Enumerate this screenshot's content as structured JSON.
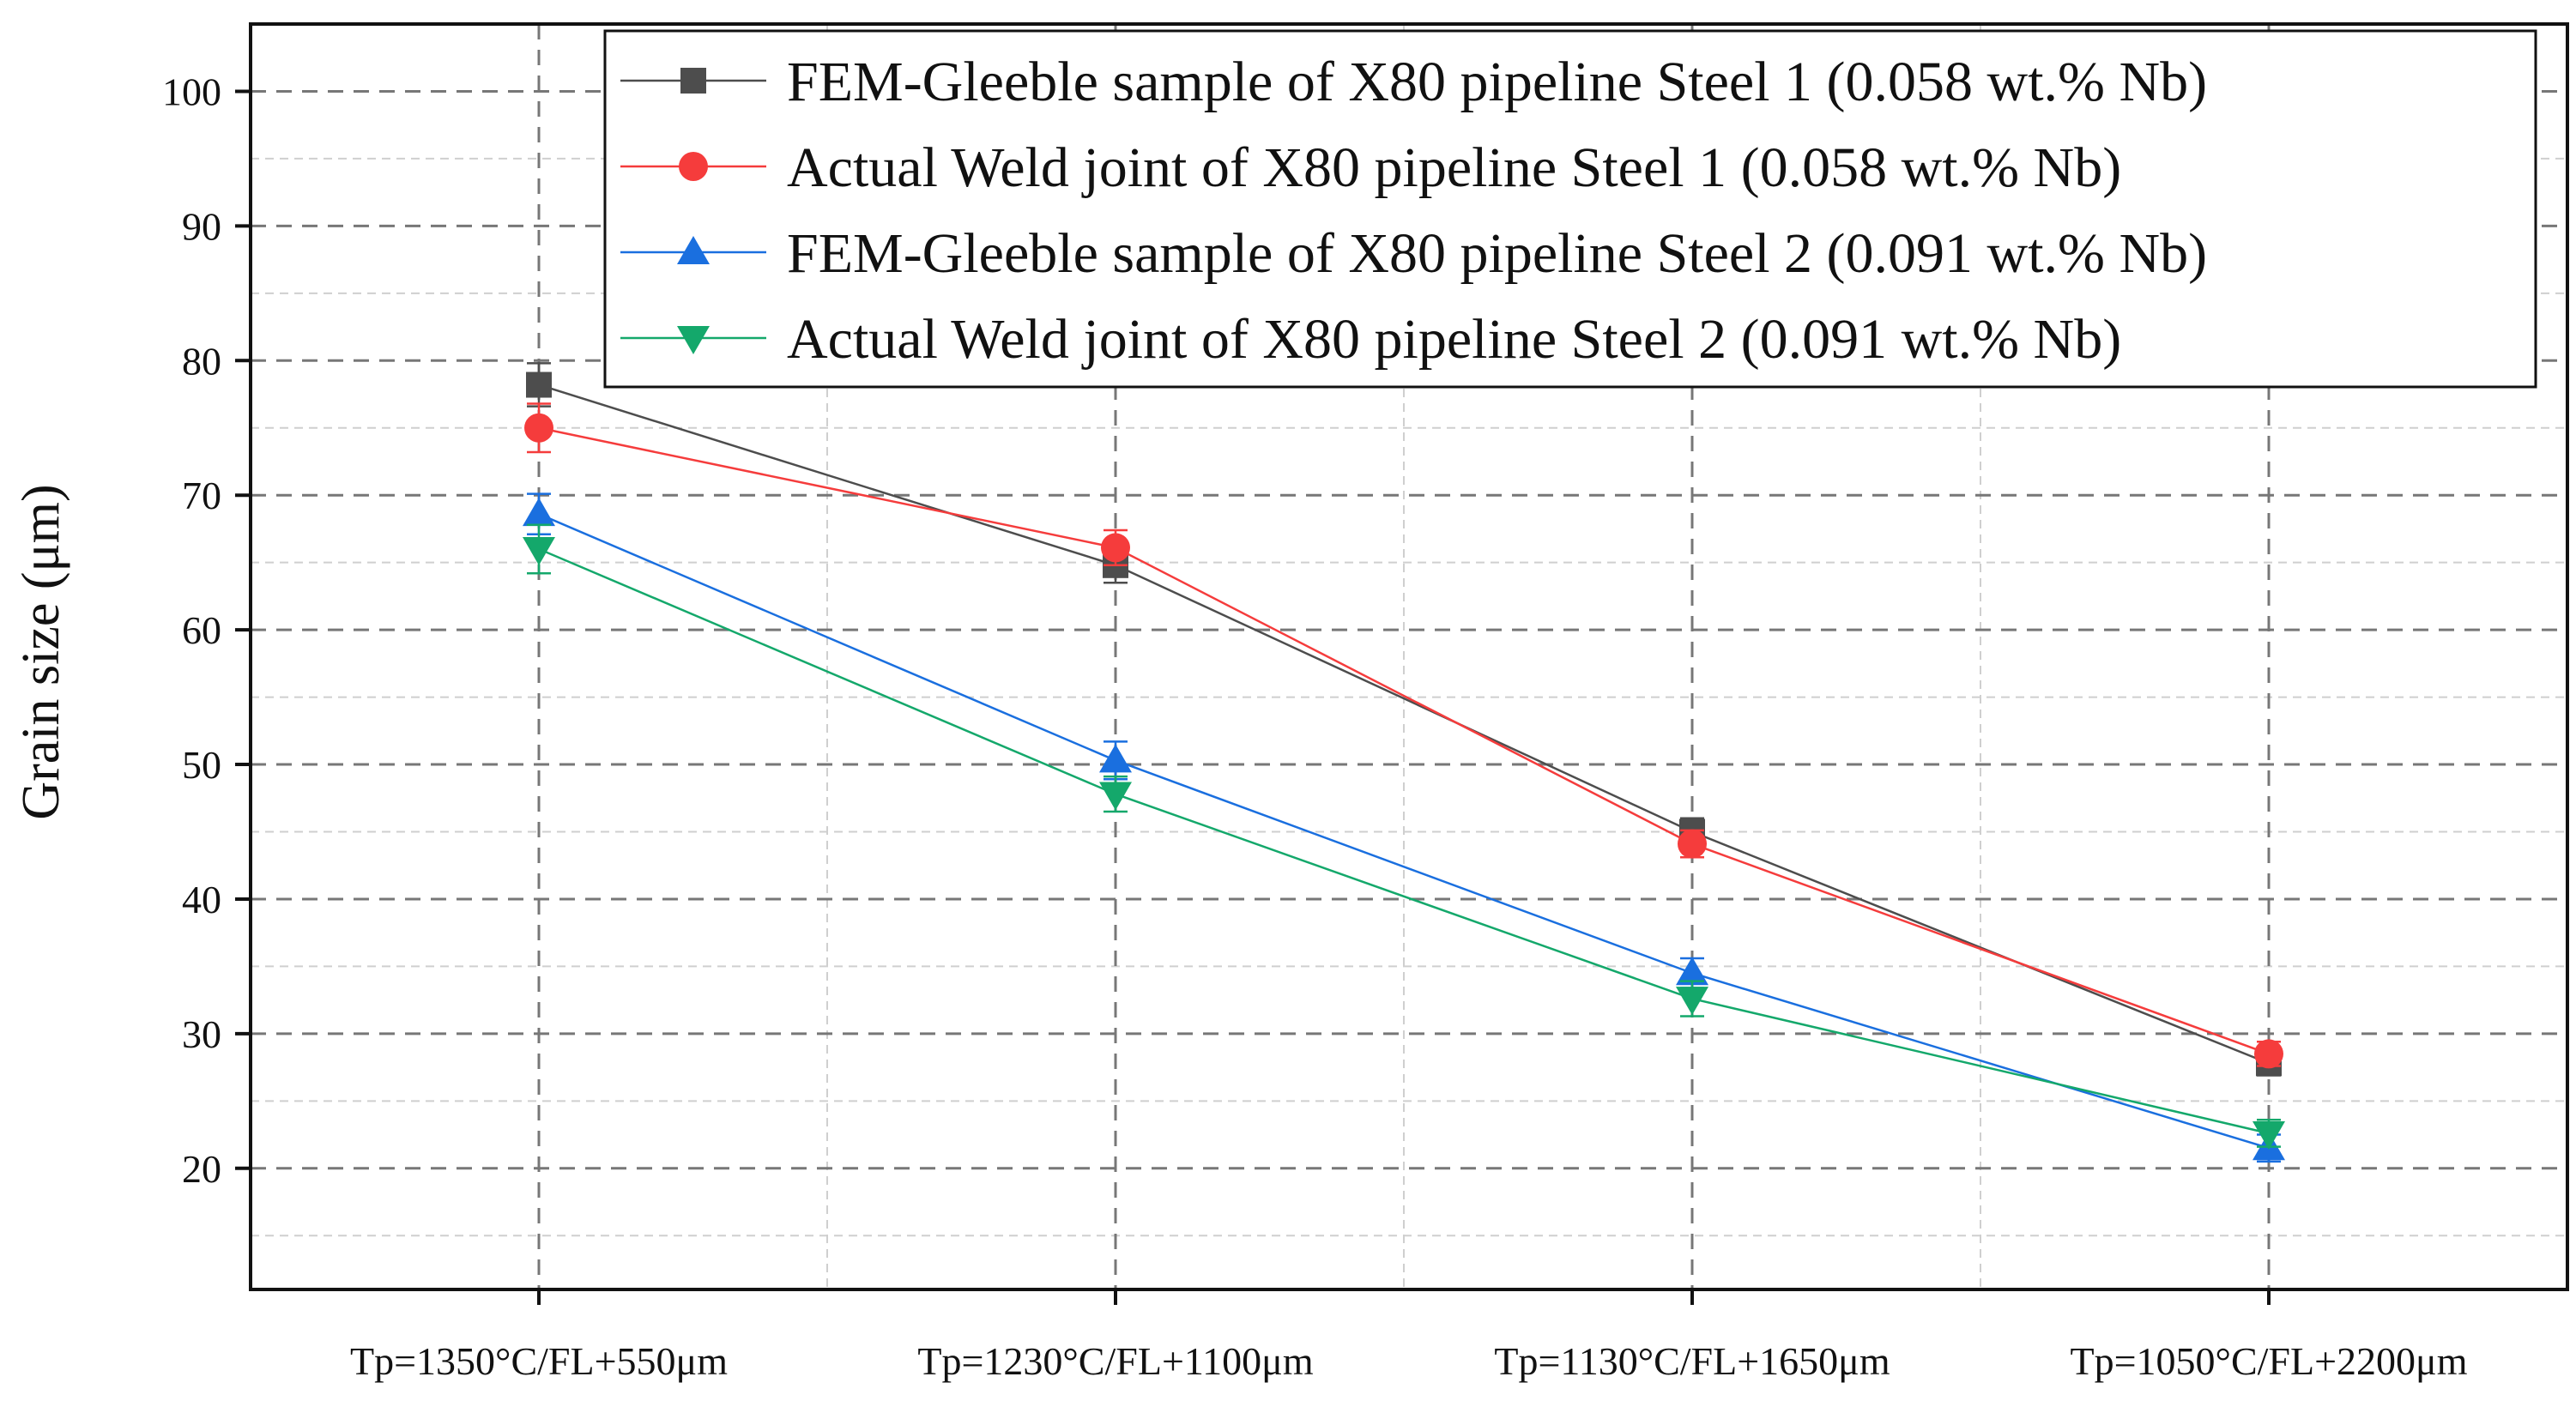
{
  "chart_data": {
    "type": "line",
    "title": "",
    "xlabel": "",
    "ylabel": "Grain size (μm)",
    "ylim": [
      11,
      105
    ],
    "yticks": [
      20,
      30,
      40,
      50,
      60,
      70,
      80,
      90,
      100
    ],
    "categories": [
      "Tp=1350°C/FL+550μm",
      "Tp=1230°C/FL+1100μm",
      "Tp=1130°C/FL+1650μm",
      "Tp=1050°C/FL+2200μm"
    ],
    "grid": true,
    "legend_position": "top-right",
    "series": [
      {
        "name": "FEM-Gleeble sample of X80 pipeline Steel 1 (0.058 wt.% Nb)",
        "marker": "square",
        "color": "#4d4d4d",
        "values": [
          78.2,
          64.8,
          45.0,
          27.8
        ],
        "errors": [
          1.6,
          1.3,
          1.0,
          0.9
        ]
      },
      {
        "name": "Actual Weld joint of X80 pipeline Steel 1 (0.058 wt.% Nb)",
        "marker": "circle",
        "color": "#f53c3c",
        "values": [
          75.0,
          66.1,
          44.1,
          28.5
        ],
        "errors": [
          1.8,
          1.3,
          1.0,
          0.9
        ]
      },
      {
        "name": "FEM-Gleeble sample of X80 pipeline Steel 2 (0.091 wt.% Nb)",
        "marker": "triangle-up",
        "color": "#1a6fdf",
        "values": [
          68.6,
          50.3,
          34.5,
          21.5
        ],
        "errors": [
          1.5,
          1.4,
          1.1,
          1.0
        ]
      },
      {
        "name": "Actual Weld joint of X80 pipeline Steel 2 (0.091 wt.% Nb)",
        "marker": "triangle-down",
        "color": "#14a86b",
        "values": [
          66.0,
          47.8,
          32.6,
          22.6
        ],
        "errors": [
          1.8,
          1.3,
          1.3,
          1.0
        ]
      }
    ]
  }
}
